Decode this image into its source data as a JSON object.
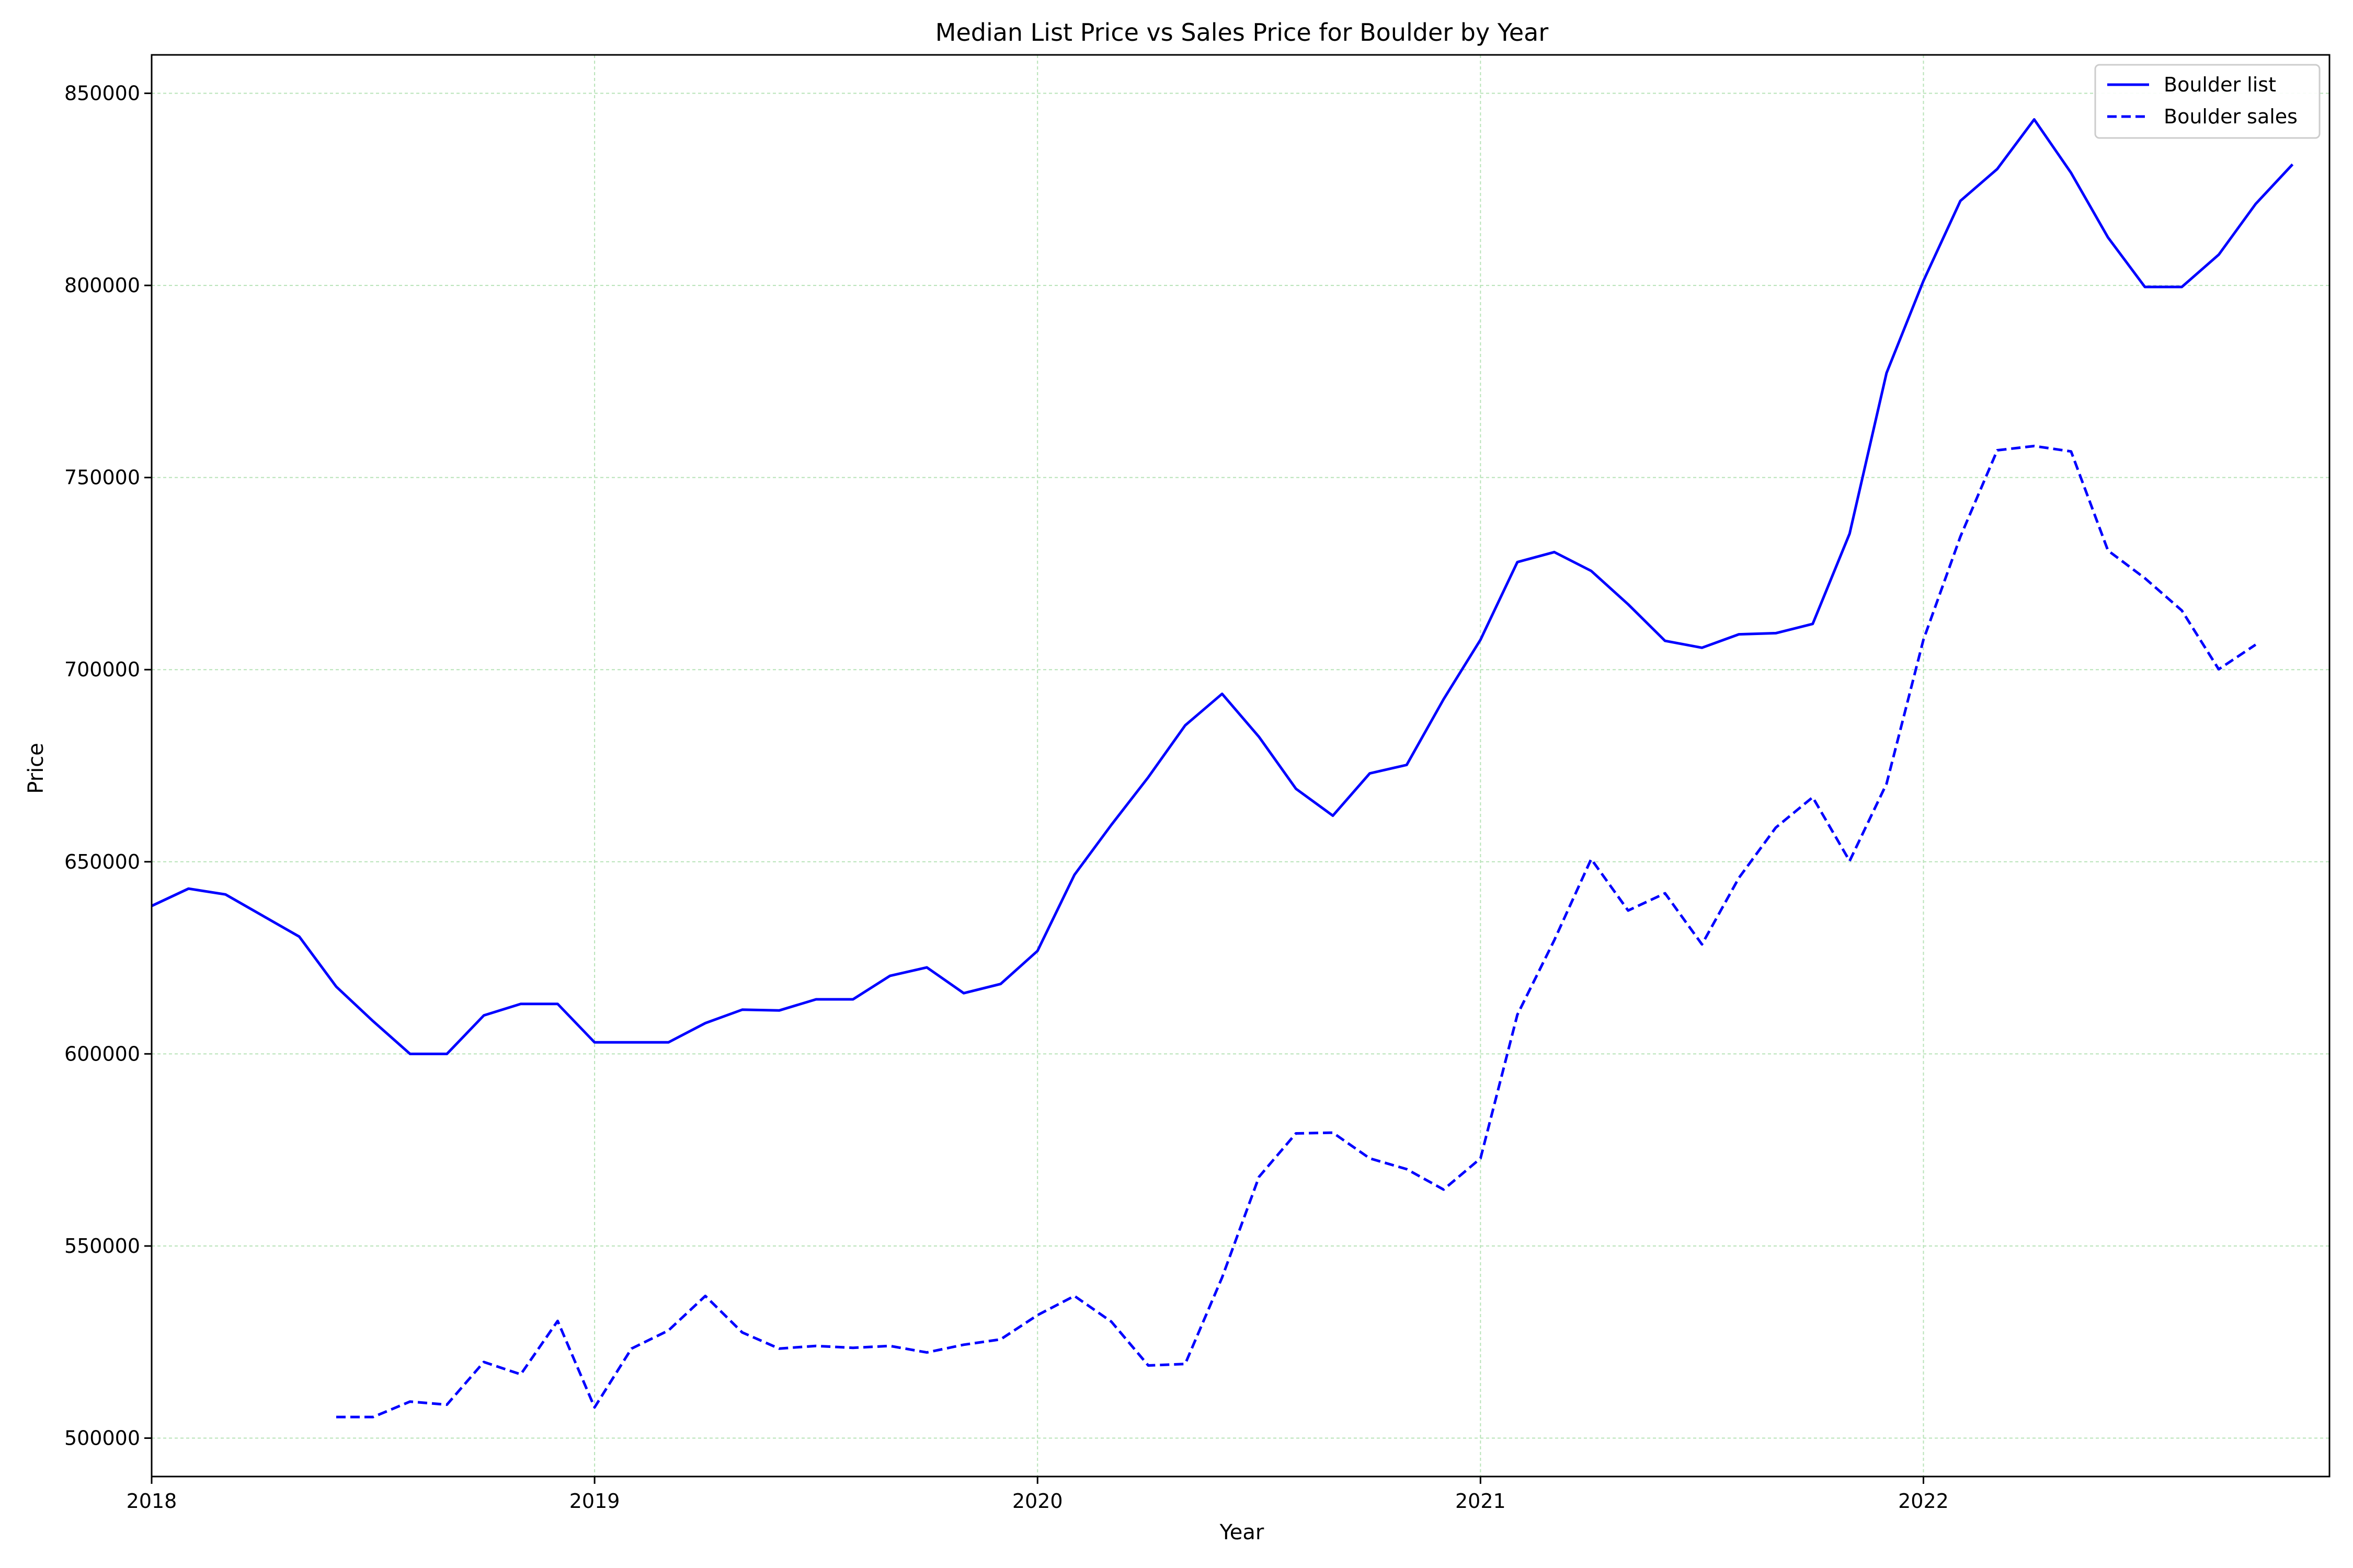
{
  "chart_data": {
    "type": "line",
    "title": "Median List Price vs Sales Price for Boulder by Year",
    "xlabel": "Year",
    "ylabel": "Price",
    "xlim": [
      "2018-01",
      "2022-12"
    ],
    "ylim": [
      490000,
      860000
    ],
    "x_ticks": [
      "2018",
      "2019",
      "2020",
      "2021",
      "2022"
    ],
    "y_ticks": [
      500000,
      550000,
      600000,
      650000,
      700000,
      750000,
      800000,
      850000
    ],
    "grid": true,
    "grid_color": "#b7e3b7",
    "legend_position": "top-right",
    "series": [
      {
        "name": "Boulder list",
        "color": "#0000ff",
        "style": "solid",
        "x": [
          "2018-01",
          "2018-02",
          "2018-03",
          "2018-04",
          "2018-05",
          "2018-06",
          "2018-07",
          "2018-08",
          "2018-09",
          "2018-10",
          "2018-11",
          "2018-12",
          "2019-01",
          "2019-02",
          "2019-03",
          "2019-04",
          "2019-05",
          "2019-06",
          "2019-07",
          "2019-08",
          "2019-09",
          "2019-10",
          "2019-11",
          "2019-12",
          "2020-01",
          "2020-02",
          "2020-03",
          "2020-04",
          "2020-05",
          "2020-06",
          "2020-07",
          "2020-08",
          "2020-09",
          "2020-10",
          "2020-11",
          "2020-12",
          "2021-01",
          "2021-02",
          "2021-03",
          "2021-04",
          "2021-05",
          "2021-06",
          "2021-07",
          "2021-08",
          "2021-09",
          "2021-10",
          "2021-11",
          "2021-12",
          "2022-01",
          "2022-02",
          "2022-03",
          "2022-04",
          "2022-05",
          "2022-06",
          "2022-07",
          "2022-08",
          "2022-09",
          "2022-10",
          "2022-11"
        ],
        "values": [
          638500,
          643000,
          641500,
          636000,
          630500,
          617500,
          608500,
          600000,
          600000,
          610000,
          613000,
          613000,
          603000,
          603000,
          603000,
          608000,
          611500,
          611300,
          614200,
          614200,
          620300,
          622500,
          615800,
          618200,
          626800,
          646600,
          659600,
          672000,
          685500,
          693700,
          682500,
          669000,
          662000,
          673000,
          675200,
          692300,
          707800,
          728000,
          730600,
          725700,
          717000,
          707500,
          705700,
          709200,
          709500,
          711900,
          735400,
          777200,
          801200,
          822000,
          830300,
          843200,
          829300,
          812500,
          799600,
          799600,
          808000,
          821200,
          831500
        ]
      },
      {
        "name": "Boulder sales",
        "color": "#0000ff",
        "style": "dashed",
        "x": [
          "2018-06",
          "2018-07",
          "2018-08",
          "2018-09",
          "2018-10",
          "2018-11",
          "2018-12",
          "2019-01",
          "2019-02",
          "2019-03",
          "2019-04",
          "2019-05",
          "2019-06",
          "2019-07",
          "2019-08",
          "2019-09",
          "2019-10",
          "2019-11",
          "2019-12",
          "2020-01",
          "2020-02",
          "2020-03",
          "2020-04",
          "2020-05",
          "2020-06",
          "2020-07",
          "2020-08",
          "2020-09",
          "2020-10",
          "2020-11",
          "2020-12",
          "2021-01",
          "2021-02",
          "2021-03",
          "2021-04",
          "2021-05",
          "2021-06",
          "2021-07",
          "2021-08",
          "2021-09",
          "2021-10",
          "2021-11",
          "2021-12",
          "2022-01",
          "2022-02",
          "2022-03",
          "2022-04",
          "2022-05",
          "2022-06",
          "2022-07",
          "2022-08",
          "2022-09",
          "2022-10"
        ],
        "values": [
          505500,
          505500,
          509500,
          508700,
          519800,
          516600,
          530500,
          508000,
          523300,
          528000,
          537000,
          527500,
          523300,
          524000,
          523500,
          524000,
          522300,
          524300,
          525700,
          532000,
          537000,
          530300,
          518900,
          519300,
          541800,
          568000,
          579300,
          579500,
          572800,
          570000,
          564700,
          572800,
          610200,
          629600,
          650700,
          637300,
          641800,
          628500,
          645800,
          658900,
          666800,
          650200,
          670300,
          707800,
          734600,
          757100,
          758200,
          756800,
          731000,
          723800,
          715400,
          700100,
          706500
        ]
      }
    ]
  }
}
